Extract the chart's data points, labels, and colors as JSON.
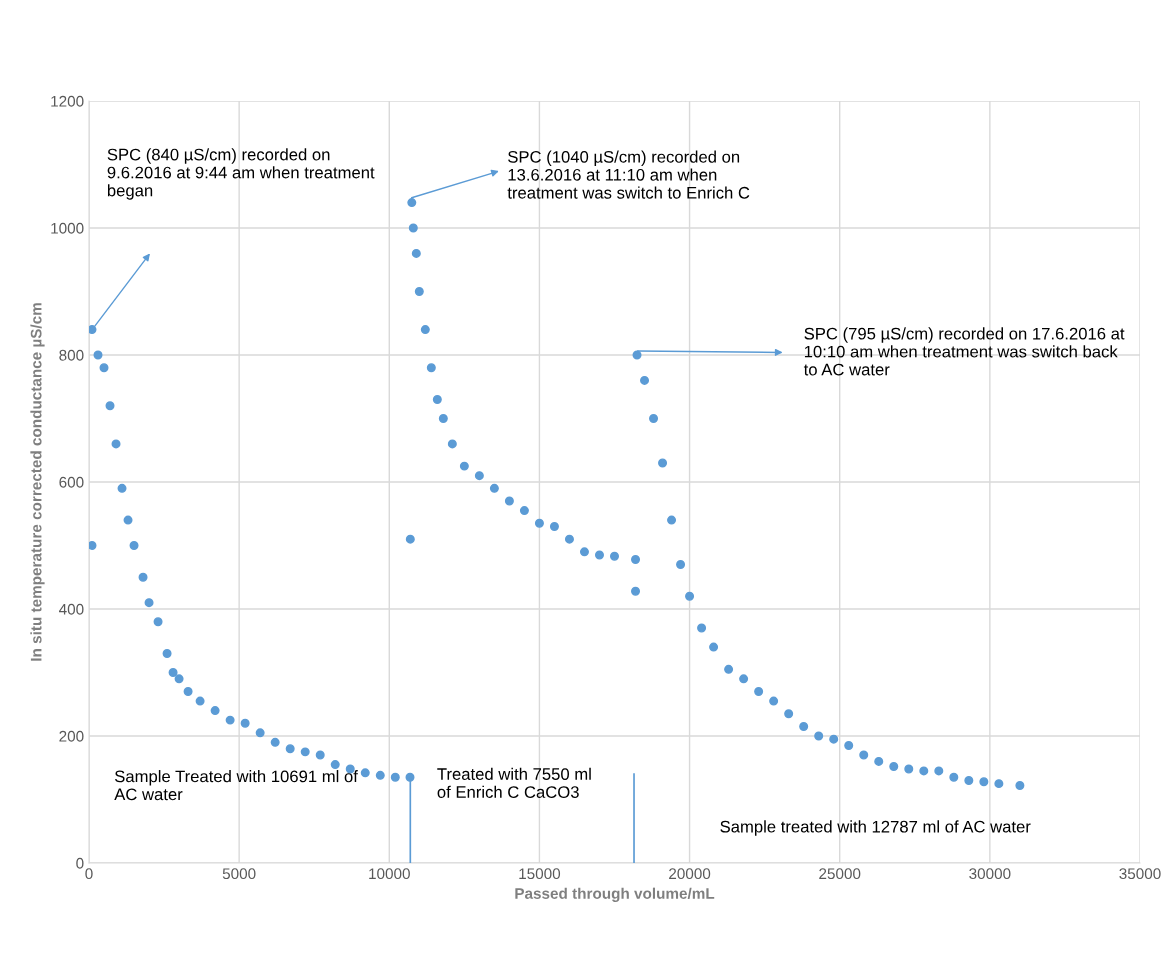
{
  "chart_data": {
    "type": "scatter",
    "xlabel": "Passed through volume/mL",
    "ylabel": "In situ temperature corrected conductance µS/cm",
    "series": [
      {
        "color": "#5b9bd5",
        "x": [
          100,
          100,
          300,
          500,
          700,
          900,
          1100,
          1300,
          1500,
          1800,
          2000,
          2300,
          2600,
          2800,
          3000,
          3300,
          3700,
          4200,
          4700,
          5200,
          5700,
          6200,
          6700,
          7200,
          7700,
          8200,
          8700,
          9200,
          9700,
          10200,
          10690
        ],
        "values": [
          500,
          840,
          800,
          780,
          720,
          660,
          590,
          540,
          500,
          450,
          410,
          380,
          330,
          300,
          290,
          270,
          255,
          240,
          225,
          220,
          205,
          190,
          180,
          175,
          170,
          155,
          148,
          142,
          138,
          135,
          135
        ]
      },
      {
        "color": "#5b9bd5",
        "x": [
          10700,
          10750,
          10800,
          10900,
          11000,
          11200,
          11400,
          11600,
          11800,
          12100,
          12500,
          13000,
          13500,
          14000,
          14500,
          15000,
          15500,
          16000,
          16500,
          17000,
          17500,
          18200,
          18200
        ],
        "values": [
          510,
          1040,
          1000,
          960,
          900,
          840,
          780,
          730,
          700,
          660,
          625,
          610,
          590,
          570,
          555,
          535,
          530,
          510,
          490,
          485,
          483,
          478,
          428
        ]
      },
      {
        "color": "#5b9bd5",
        "x": [
          18250,
          18500,
          18800,
          19100,
          19400,
          19700,
          20000,
          20400,
          20800,
          21300,
          21800,
          22300,
          22800,
          23300,
          23800,
          24300,
          24800,
          25300,
          25800,
          26300,
          26800,
          27300,
          27800,
          28300,
          28800,
          29300,
          29800,
          30300,
          31000
        ],
        "values": [
          800,
          760,
          700,
          630,
          540,
          470,
          420,
          370,
          340,
          305,
          290,
          270,
          255,
          235,
          215,
          200,
          195,
          185,
          170,
          160,
          152,
          148,
          145,
          145,
          135,
          130,
          128,
          125,
          122
        ]
      },
      {
        "type": "line",
        "marker": "none",
        "color": "#5b9bd5",
        "x": [
          10700,
          10700
        ],
        "values": [
          0,
          135
        ]
      },
      {
        "type": "line",
        "marker": "none",
        "color": "#5b9bd5",
        "x": [
          18150,
          18150
        ],
        "values": [
          0,
          140
        ]
      }
    ],
    "annotations": [
      "SPC (840 µS/cm) recorded on\n9.6.2016 at 9:44 am when treatment\nbegan",
      "SPC (1040 µS/cm) recorded on\n13.6.2016 at 11:10 am when\ntreatment was switch to Enrich C",
      "SPC (795 µS/cm) recorded on 17.6.2016 at\n10:10 am when treatment was switch back\nto AC water",
      "Sample Treated with 10691 ml of\nAC water",
      "Treated with 7550 ml\nof Enrich C CaCO3",
      "Sample treated with 12787 ml of AC water"
    ],
    "xlim": [
      0,
      35000
    ],
    "xticks": [
      0,
      5000,
      10000,
      15000,
      20000,
      25000,
      30000,
      35000
    ],
    "ylim": [
      0,
      1200
    ],
    "yticks": [
      0,
      200,
      400,
      600,
      800,
      1000,
      1200
    ],
    "grid": true,
    "marker": "circle",
    "legend": false
  }
}
